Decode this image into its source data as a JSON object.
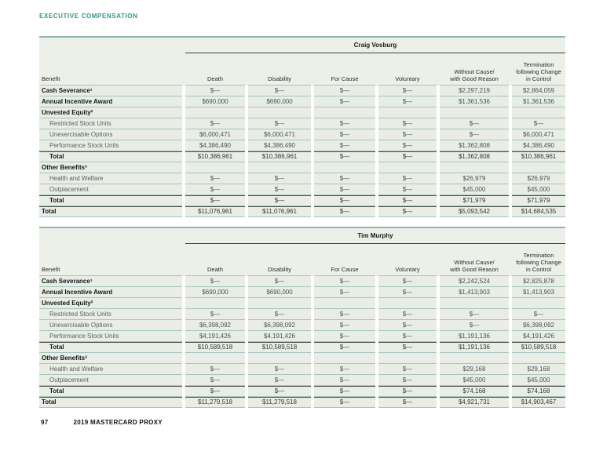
{
  "page": {
    "header": "EXECUTIVE COMPENSATION",
    "footer": {
      "page_number": "97",
      "label": "2019 MASTERCARD PROXY"
    }
  },
  "table_columns": {
    "benefit": "Benefit",
    "scenarios": [
      "Death",
      "Disability",
      "For Cause",
      "Voluntary",
      "Without Cause/\nwith Good Reason",
      "Termination\nfollowing Change\nin Control"
    ]
  },
  "colors": {
    "accent_teal": "#2f958d",
    "rule_teal": "#a3c4bf",
    "table_top_border": "#8eb7b2",
    "row_bg": "#eaede6",
    "dark_rule": "#484e4b"
  },
  "tables": [
    {
      "name": "Craig Vosburg",
      "rows": [
        {
          "label": "Cash Severance¹",
          "style": "bold",
          "values": [
            "$—",
            "$—",
            "$—",
            "$—",
            "$2,297,219",
            "$2,864,059"
          ]
        },
        {
          "label": "Annual Incentive Award",
          "style": "bold",
          "values": [
            "$690,000",
            "$690,000",
            "$—",
            "$—",
            "$1,361,536",
            "$1,361,536"
          ]
        },
        {
          "label": "Unvested Equity²",
          "style": "section",
          "values": [
            "",
            "",
            "",
            "",
            "",
            ""
          ]
        },
        {
          "label": "Restricted Stock Units",
          "style": "sub",
          "values": [
            "$—",
            "$—",
            "$—",
            "$—",
            "$—",
            "$—"
          ]
        },
        {
          "label": "Unexercisable Options",
          "style": "sub",
          "values": [
            "$6,000,471",
            "$6,000,471",
            "$—",
            "$—",
            "$—",
            "$6,000,471"
          ]
        },
        {
          "label": "Performance Stock Units",
          "style": "sub",
          "values": [
            "$4,386,490",
            "$4,386,490",
            "$—",
            "$—",
            "$1,362,808",
            "$4,386,490"
          ]
        },
        {
          "label": "Total",
          "style": "section-total",
          "values": [
            "$10,386,961",
            "$10,386,961",
            "$—",
            "$—",
            "$1,362,808",
            "$10,386,961"
          ]
        },
        {
          "label": "Other Benefits³",
          "style": "section",
          "values": [
            "",
            "",
            "",
            "",
            "",
            ""
          ]
        },
        {
          "label": "Health and Welfare",
          "style": "sub",
          "values": [
            "$—",
            "$—",
            "$—",
            "$—",
            "$26,979",
            "$26,979"
          ]
        },
        {
          "label": "Outplacement",
          "style": "sub",
          "values": [
            "$—",
            "$—",
            "$—",
            "$—",
            "$45,000",
            "$45,000"
          ]
        },
        {
          "label": "Total",
          "style": "section-total",
          "values": [
            "$—",
            "$—",
            "$—",
            "$—",
            "$71,979",
            "$71,979"
          ]
        },
        {
          "label": "Total",
          "style": "grand-total",
          "values": [
            "$11,076,961",
            "$11,076,961",
            "$—",
            "$—",
            "$5,093,542",
            "$14,684,535"
          ]
        }
      ]
    },
    {
      "name": "Tim Murphy",
      "rows": [
        {
          "label": "Cash Severance¹",
          "style": "bold",
          "values": [
            "$—",
            "$—",
            "$—",
            "$—",
            "$2,242,524",
            "$2,825,878"
          ]
        },
        {
          "label": "Annual Incentive Award",
          "style": "bold",
          "values": [
            "$690,000",
            "$690,000",
            "$—",
            "$—",
            "$1,413,903",
            "$1,413,903"
          ]
        },
        {
          "label": "Unvested Equity²",
          "style": "section",
          "values": [
            "",
            "",
            "",
            "",
            "",
            ""
          ]
        },
        {
          "label": "Restricted Stock Units",
          "style": "sub",
          "values": [
            "$—",
            "$—",
            "$—",
            "$—",
            "$—",
            "$—"
          ]
        },
        {
          "label": "Unexercisable Options",
          "style": "sub",
          "values": [
            "$6,398,092",
            "$6,398,092",
            "$—",
            "$—",
            "$—",
            "$6,398,092"
          ]
        },
        {
          "label": "Performance Stock Units",
          "style": "sub",
          "values": [
            "$4,191,426",
            "$4,191,426",
            "$—",
            "$—",
            "$1,191,136",
            "$4,191,426"
          ]
        },
        {
          "label": "Total",
          "style": "section-total",
          "values": [
            "$10,589,518",
            "$10,589,518",
            "$—",
            "$—",
            "$1,191,136",
            "$10,589,518"
          ]
        },
        {
          "label": "Other Benefits³",
          "style": "section",
          "values": [
            "",
            "",
            "",
            "",
            "",
            ""
          ]
        },
        {
          "label": "Health and Welfare",
          "style": "sub",
          "values": [
            "$—",
            "$—",
            "$—",
            "$—",
            "$29,168",
            "$29,168"
          ]
        },
        {
          "label": "Outplacement",
          "style": "sub",
          "values": [
            "$—",
            "$—",
            "$—",
            "$—",
            "$45,000",
            "$45,000"
          ]
        },
        {
          "label": "Total",
          "style": "section-total",
          "values": [
            "$—",
            "$—",
            "$—",
            "$—",
            "$74,168",
            "$74,168"
          ]
        },
        {
          "label": "Total",
          "style": "grand-total",
          "values": [
            "$11,279,518",
            "$11,279,518",
            "$—",
            "$—",
            "$4,921,731",
            "$14,903,467"
          ]
        }
      ]
    }
  ]
}
